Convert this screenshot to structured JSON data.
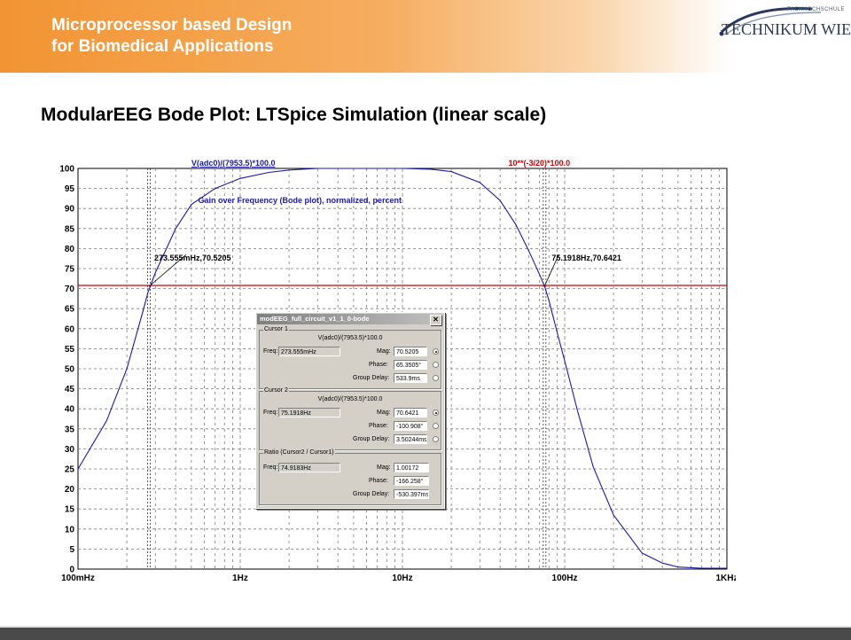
{
  "header": {
    "line1": "Microprocessor based Design",
    "line2": "for Biomedical Applications",
    "logo_small": "FACHHOCHSCHULE",
    "logo_main": "TECHNIKUM WIEN"
  },
  "slide_title": "ModularEEG Bode Plot: LTSpice Simulation (linear scale)",
  "colors": {
    "curve": "#1a1aa8",
    "threshold": "#cc0000",
    "grid": "#7a7a7a",
    "header_orange": "#f29433"
  },
  "chart_data": {
    "type": "line",
    "xscale": "log",
    "xlim": [
      0.1,
      1000
    ],
    "ylim": [
      0,
      100
    ],
    "grid": true,
    "x_tick_labels": [
      "100mHz",
      "1Hz",
      "10Hz",
      "100Hz",
      "1KHz"
    ],
    "x_tick_values": [
      0.1,
      1,
      10,
      100,
      1000
    ],
    "y_tick_labels": [
      "100",
      "95",
      "90",
      "85",
      "80",
      "75",
      "70",
      "65",
      "60",
      "55",
      "50",
      "45",
      "40",
      "35",
      "30",
      "25",
      "20",
      "15",
      "10",
      "5",
      "0"
    ],
    "series": [
      {
        "name": "V(adc0)/(7953.5)*100.0",
        "color": "#1a1aa8",
        "x": [
          0.1,
          0.15,
          0.2,
          0.25,
          0.27,
          0.3,
          0.4,
          0.5,
          0.7,
          1,
          1.5,
          2,
          3,
          5,
          7,
          10,
          15,
          20,
          30,
          40,
          50,
          60,
          70,
          75.2,
          80,
          90,
          100,
          120,
          150,
          200,
          300,
          400,
          500,
          700,
          1000
        ],
        "y": [
          25,
          37,
          50,
          64,
          69,
          74,
          85,
          91,
          95,
          97.5,
          99,
          99.6,
          100,
          100,
          100,
          100,
          99.8,
          99.2,
          96.5,
          92,
          86,
          79.5,
          73.5,
          70.6,
          67,
          59,
          52,
          39.5,
          25.5,
          13.5,
          4,
          1.5,
          0.5,
          0.2,
          0.2
        ]
      },
      {
        "name": "10**(-3/20)*100.0",
        "color": "#cc0000",
        "x": [
          0.1,
          1000
        ],
        "y": [
          70.79,
          70.79
        ]
      }
    ],
    "annotations": [
      {
        "text": "Gain over Frequency (Bode plot), normalized, percent",
        "x": 0.55,
        "y": 92
      },
      {
        "text": "273.555mHz,70.5205",
        "x": 0.2736,
        "y": 70.52
      },
      {
        "text": "75.1918Hz,70.6421",
        "x": 75.19,
        "y": 70.64
      }
    ],
    "cursor_x": [
      0.2736,
      75.19
    ]
  },
  "dialog": {
    "title": "modEEG_full_circuit_v1_1_0-bode",
    "close": "✕",
    "cursor1": {
      "label": "Cursor 1",
      "expr": "V(adc0)/(7953.5)*100.0",
      "freq_label": "Freq:",
      "freq": "273.555mHz",
      "mag_label": "Mag:",
      "mag": "70.5205",
      "phase_label": "Phase:",
      "phase": "65.3505°",
      "gd_label": "Group Delay:",
      "gd": "533.9ms"
    },
    "cursor2": {
      "label": "Cursor 2",
      "expr": "V(adc0)/(7953.5)*100.0",
      "freq_label": "Freq:",
      "freq": "75.1918Hz",
      "mag_label": "Mag:",
      "mag": "70.6421",
      "phase_label": "Phase:",
      "phase": "-100.908°",
      "gd_label": "Group Delay:",
      "gd": "3.50244ms"
    },
    "ratio": {
      "label": "Ratio (Cursor2 / Cursor1)",
      "freq_label": "Freq:",
      "freq": "74.9183Hz",
      "mag_label": "Mag:",
      "mag": "1.00172",
      "phase_label": "Phase:",
      "phase": "-166.258°",
      "gd_label": "Group Delay:",
      "gd": "-530.397ms"
    }
  }
}
